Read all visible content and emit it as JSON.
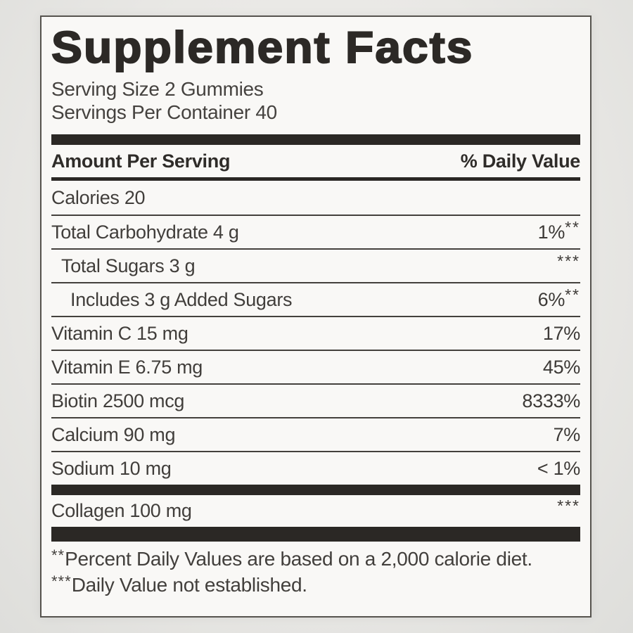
{
  "panel": {
    "title": "Supplement Facts",
    "serving_size": "Serving Size 2 Gummies",
    "servings_per_container": "Servings Per Container 40",
    "columns": {
      "amount": "Amount Per Serving",
      "daily_value": "% Daily Value"
    },
    "rows": [
      {
        "label": "Calories 20",
        "value": "",
        "sup": "",
        "indent": 0
      },
      {
        "label": "Total Carbohydrate 4 g",
        "value": "1%",
        "sup": "**",
        "indent": 0
      },
      {
        "label": "Total Sugars 3 g",
        "value": "",
        "sup": "***",
        "indent": 1
      },
      {
        "label": "Includes 3 g Added Sugars",
        "value": "6%",
        "sup": "**",
        "indent": 2
      },
      {
        "label": "Vitamin C 15 mg",
        "value": "17%",
        "sup": "",
        "indent": 0
      },
      {
        "label": "Vitamin E 6.75 mg",
        "value": "45%",
        "sup": "",
        "indent": 0
      },
      {
        "label": "Biotin 2500 mcg",
        "value": "8333%",
        "sup": "",
        "indent": 0
      },
      {
        "label": "Calcium 90 mg",
        "value": "7%",
        "sup": "",
        "indent": 0
      },
      {
        "label": "Sodium 10 mg",
        "value": "< 1%",
        "sup": "",
        "indent": 0
      }
    ],
    "other_rows": [
      {
        "label": "Collagen 100 mg",
        "value": "",
        "sup": "***",
        "indent": 0
      }
    ],
    "footnotes": [
      {
        "prefix": "**",
        "text": "Percent Daily Values are based on a 2,000 calorie diet."
      },
      {
        "prefix": "***",
        "text": "Daily Value not established."
      }
    ],
    "colors": {
      "page_background": "#e9e8e5",
      "label_background": "#f9f8f6",
      "text": "#413e3b",
      "bars_and_rules": "#2b2825",
      "border": "#56534e"
    }
  }
}
